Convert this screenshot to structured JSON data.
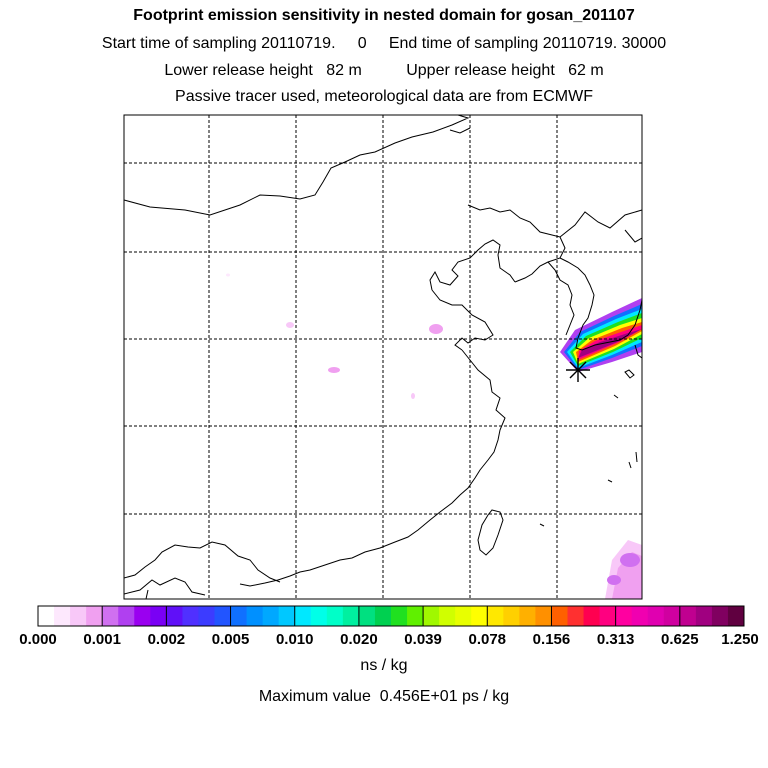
{
  "header": {
    "title": "Footprint emission sensitivity in nested domain for gosan_201107",
    "sampling_line": "Start time of sampling 20110719.     0     End time of sampling 20110719. 30000",
    "release_line": "Lower release height   82 m          Upper release height   62 m",
    "tracer_line": "Passive tracer used, meteorological data are from ECMWF"
  },
  "colorbar": {
    "labels": [
      "0.000",
      "0.001",
      "0.002",
      "0.005",
      "0.010",
      "0.020",
      "0.039",
      "0.078",
      "0.156",
      "0.313",
      "0.625",
      "1.250"
    ],
    "colors": [
      "#ffffff",
      "#fde8fd",
      "#f8c8f8",
      "#f0a0f0",
      "#d070f0",
      "#b040f0",
      "#9a00f0",
      "#7a00f5",
      "#6010f8",
      "#5030ff",
      "#3c3cff",
      "#2255ff",
      "#1070ff",
      "#0090ff",
      "#00a8ff",
      "#00c8ff",
      "#00e8ff",
      "#00ffe8",
      "#00ffc8",
      "#00f0a0",
      "#00e080",
      "#00d050",
      "#20e020",
      "#60f000",
      "#a0f800",
      "#d0ff00",
      "#e8ff00",
      "#ffff00",
      "#ffe800",
      "#ffd000",
      "#ffb000",
      "#ff9000",
      "#ff6000",
      "#ff3030",
      "#ff0050",
      "#ff0080",
      "#ff00a0",
      "#f000b0",
      "#e000b0",
      "#d000a0",
      "#c00090",
      "#a00080",
      "#800060",
      "#600040"
    ],
    "units": "ns / kg"
  },
  "max_value_text": "Maximum value  0.456E+01 ps / kg"
}
